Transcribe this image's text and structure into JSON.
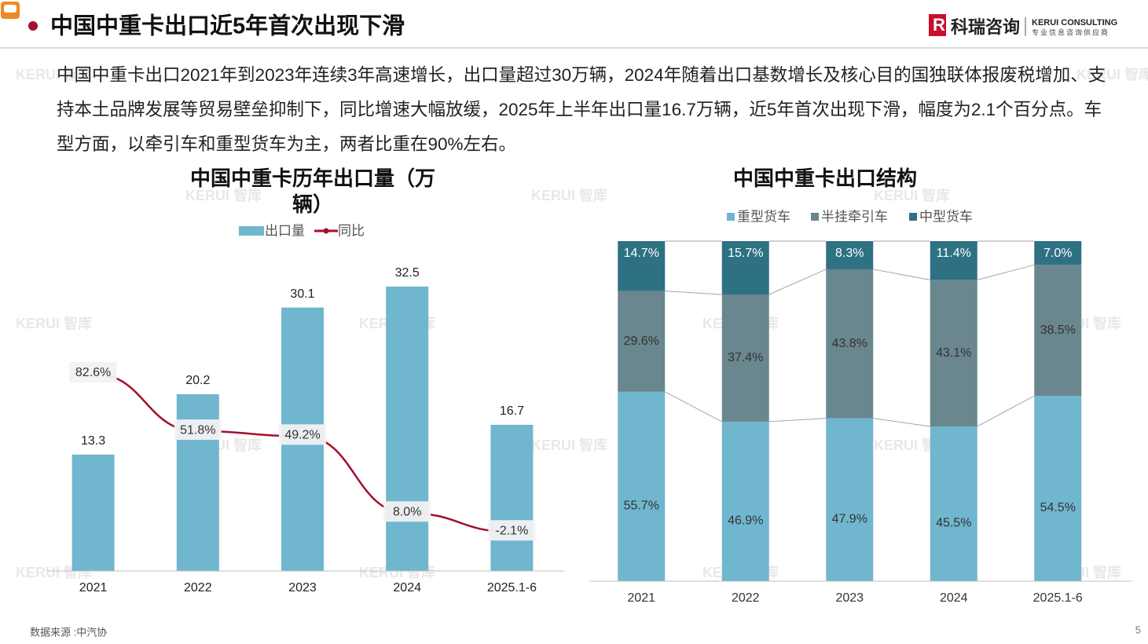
{
  "header": {
    "title": "中国中重卡出口近5年首次出现下滑",
    "logo": "科瑞咨询",
    "logo_en": "KERUI CONSULTING",
    "logo_sub": "专业信息咨询供应商"
  },
  "paragraph": "中国中重卡出口2021年到2023年连续3年高速增长，出口量超过30万辆，2024年随着出口基数增长及核心目的国独联体报废税增加、支持本土品牌发展等贸易壁垒抑制下，同比增速大幅放缓，2025年上半年出口量16.7万辆，近5年首次出现下滑，幅度为2.1个百分点。车型方面，以牵引车和重型货车为主，两者比重在90%左右。",
  "watermark": "KERUI 智库",
  "source": "数据来源 :中汽协",
  "page_number": "5",
  "chart_data": [
    {
      "type": "bar_line",
      "title": "中国中重卡历年出口量（万辆）",
      "categories": [
        "2021",
        "2022",
        "2023",
        "2024",
        "2025.1-6"
      ],
      "series": [
        {
          "name": "出口量",
          "color": "#70b6cf",
          "values": [
            13.3,
            20.2,
            30.1,
            32.5,
            16.7
          ]
        },
        {
          "name": "同比",
          "color": "#a50f2d",
          "axis": "y2",
          "values": [
            82.6,
            51.8,
            49.2,
            8.0,
            -2.1
          ],
          "value_labels": [
            "82.6%",
            "51.8%",
            "49.2%",
            "8.0%",
            "-2.1%"
          ]
        }
      ],
      "ylim": [
        0,
        35
      ],
      "y2lim": [
        -23,
        141
      ]
    },
    {
      "type": "stacked_bar",
      "title": "中国中重卡出口结构",
      "categories": [
        "2021",
        "2022",
        "2023",
        "2024",
        "2025.1-6"
      ],
      "series": [
        {
          "name": "重型货车",
          "color": "#70b6cf",
          "values": [
            55.7,
            46.9,
            47.9,
            45.5,
            54.5
          ],
          "value_labels": [
            "55.7%",
            "46.9%",
            "47.9%",
            "45.5%",
            "54.5%"
          ]
        },
        {
          "name": "半挂牵引车",
          "color": "#6a868e",
          "values": [
            29.6,
            37.4,
            43.8,
            43.1,
            38.5
          ],
          "value_labels": [
            "29.6%",
            "37.4%",
            "43.8%",
            "43.1%",
            "38.5%"
          ]
        },
        {
          "name": "中型货车",
          "color": "#2e7183",
          "values": [
            14.7,
            15.7,
            8.3,
            11.4,
            7.0
          ],
          "value_labels": [
            "14.7%",
            "15.7%",
            "8.3%",
            "11.4%",
            "7.0%"
          ]
        }
      ],
      "ylim": [
        0,
        100
      ]
    }
  ]
}
